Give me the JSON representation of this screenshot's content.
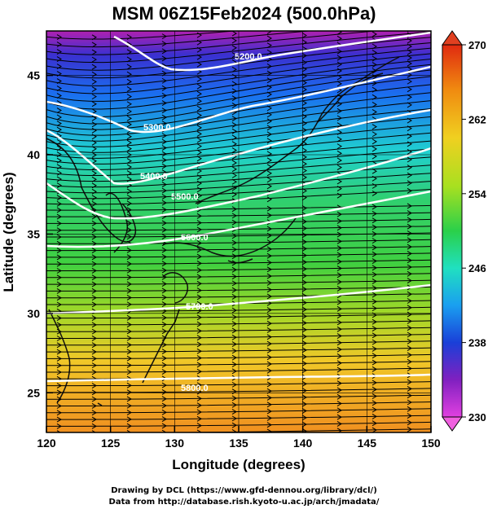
{
  "title": "MSM 06Z15Feb2024 (500.0hPa)",
  "x_axis": {
    "label": "Longitude (degrees)",
    "ticks": [
      "120",
      "125",
      "130",
      "135",
      "140",
      "145",
      "150"
    ],
    "range": [
      120,
      150
    ]
  },
  "y_axis": {
    "label": "Latitude  (degrees)",
    "ticks": [
      "25",
      "30",
      "35",
      "40",
      "45"
    ],
    "range": [
      22.5,
      47.8
    ]
  },
  "colorbar": {
    "ticks": [
      "270",
      "262",
      "254",
      "246",
      "238",
      "230"
    ],
    "range": [
      230,
      270
    ],
    "colors": [
      "#e040e0",
      "#8020c0",
      "#1a3fd8",
      "#1a9ff0",
      "#20e0c0",
      "#2ad04a",
      "#a8e020",
      "#f0d020",
      "#f08a10",
      "#e02a10"
    ]
  },
  "contours": [
    {
      "label": "5200.0"
    },
    {
      "label": "5300.0"
    },
    {
      "label": "5400.0"
    },
    {
      "label": "5500.0"
    },
    {
      "label": "5600.0"
    },
    {
      "label": "5700.0"
    },
    {
      "label": "5800.0"
    }
  ],
  "footer": {
    "line1": "Drawing by DCL (https://www.gfd-dennou.org/library/dcl/)",
    "line2": "Data from http://database.rish.kyoto-u.ac.jp/arch/jmadata/"
  }
}
